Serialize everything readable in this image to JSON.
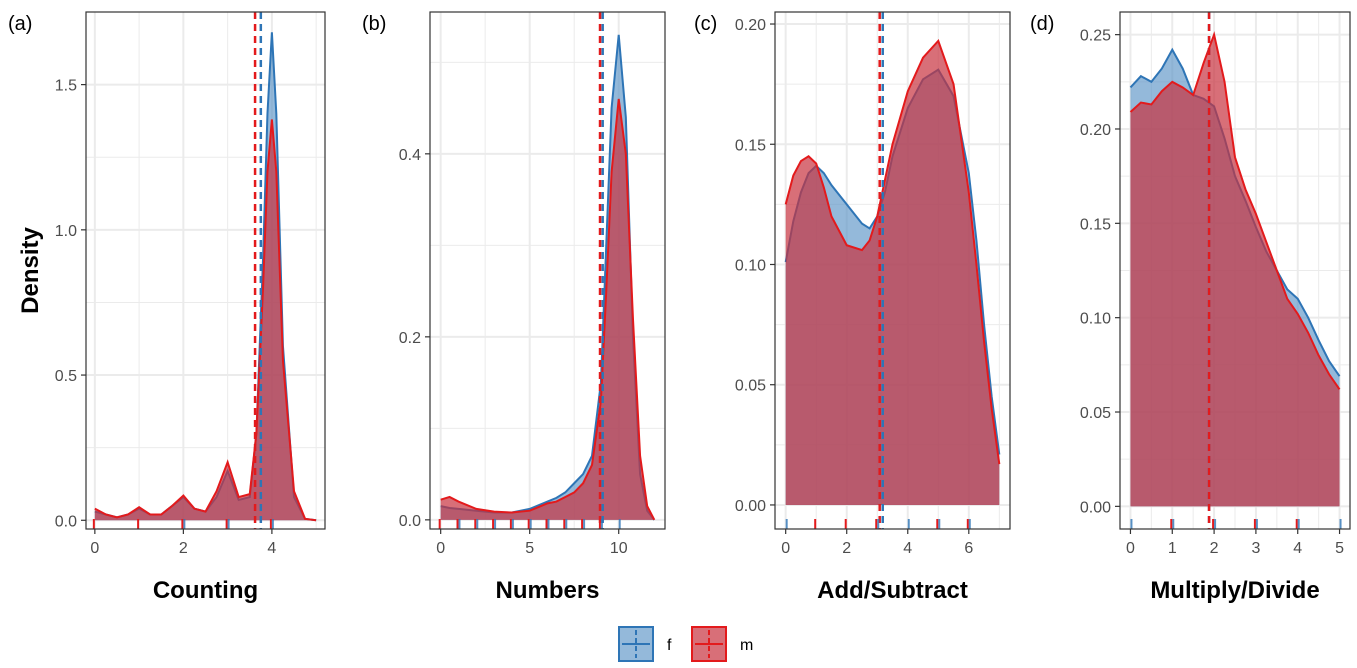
{
  "chart_data": [
    {
      "type": "area",
      "panel": "(a)",
      "xlabel": "Counting",
      "ylabel": "Density",
      "xlim": [
        -0.2,
        5.2
      ],
      "ylim": [
        -0.03,
        1.75
      ],
      "xticks": [
        0,
        2,
        4
      ],
      "yticks": [
        0.0,
        0.5,
        1.0,
        1.5
      ],
      "ytick_labels": [
        "0.0",
        "0.5",
        "1.0",
        "1.5"
      ],
      "xminor": [
        1,
        3,
        5
      ],
      "yminor": [
        0.25,
        0.75,
        1.25
      ],
      "grid": true,
      "mean_lines": {
        "f": 3.75,
        "m": 3.62
      },
      "rug": {
        "f": [
          2,
          3,
          4
        ],
        "m": [
          0,
          1,
          2,
          3,
          4
        ]
      },
      "series": [
        {
          "name": "f",
          "x": [
            0,
            0.25,
            0.5,
            0.75,
            1,
            1.25,
            1.5,
            1.75,
            2,
            2.25,
            2.5,
            2.75,
            3,
            3.25,
            3.5,
            3.65,
            3.8,
            3.9,
            4,
            4.1,
            4.25,
            4.5,
            4.75,
            5
          ],
          "y": [
            0.03,
            0.02,
            0.01,
            0.02,
            0.04,
            0.02,
            0.02,
            0.05,
            0.08,
            0.04,
            0.03,
            0.08,
            0.17,
            0.07,
            0.08,
            0.3,
            0.9,
            1.4,
            1.68,
            1.4,
            0.6,
            0.08,
            0.005,
            0
          ]
        },
        {
          "name": "m",
          "x": [
            0,
            0.25,
            0.5,
            0.75,
            1,
            1.25,
            1.5,
            1.75,
            2,
            2.25,
            2.5,
            2.75,
            3,
            3.25,
            3.5,
            3.65,
            3.8,
            3.9,
            4,
            4.1,
            4.25,
            4.5,
            4.75,
            5
          ],
          "y": [
            0.04,
            0.02,
            0.01,
            0.02,
            0.045,
            0.02,
            0.02,
            0.05,
            0.085,
            0.04,
            0.03,
            0.1,
            0.2,
            0.08,
            0.09,
            0.3,
            0.8,
            1.2,
            1.38,
            1.2,
            0.55,
            0.1,
            0.005,
            0
          ]
        }
      ]
    },
    {
      "type": "area",
      "panel": "(b)",
      "xlabel": "Numbers",
      "ylabel": "",
      "xlim": [
        -0.6,
        12.6
      ],
      "ylim": [
        -0.01,
        0.555
      ],
      "xticks": [
        0,
        5,
        10
      ],
      "yticks": [
        0.0,
        0.2,
        0.4
      ],
      "ytick_labels": [
        "0.0",
        "0.2",
        "0.4"
      ],
      "xminor": [
        2.5,
        7.5
      ],
      "yminor": [
        0.1,
        0.3,
        0.5
      ],
      "grid": true,
      "mean_lines": {
        "f": 9.1,
        "m": 8.95
      },
      "rug": {
        "f": [
          1,
          2,
          3,
          4,
          5,
          6,
          7,
          8,
          9,
          10
        ],
        "m": [
          0,
          1,
          2,
          3,
          4,
          5,
          6,
          7,
          8,
          9
        ]
      },
      "series": [
        {
          "name": "f",
          "x": [
            0,
            0.5,
            1,
            2,
            3,
            4,
            5,
            6,
            6.5,
            7,
            7.5,
            8,
            8.5,
            9,
            9.3,
            9.6,
            10,
            10.4,
            10.8,
            11.2,
            11.6,
            12
          ],
          "y": [
            0.015,
            0.013,
            0.012,
            0.01,
            0.008,
            0.008,
            0.012,
            0.02,
            0.024,
            0.03,
            0.04,
            0.05,
            0.07,
            0.15,
            0.3,
            0.45,
            0.53,
            0.44,
            0.2,
            0.05,
            0.01,
            0
          ]
        },
        {
          "name": "m",
          "x": [
            0,
            0.5,
            1,
            2,
            3,
            4,
            5,
            6,
            6.5,
            7,
            7.5,
            8,
            8.5,
            9,
            9.3,
            9.6,
            10,
            10.4,
            10.8,
            11.2,
            11.6,
            12
          ],
          "y": [
            0.022,
            0.025,
            0.02,
            0.012,
            0.009,
            0.008,
            0.01,
            0.018,
            0.02,
            0.025,
            0.03,
            0.04,
            0.06,
            0.13,
            0.25,
            0.38,
            0.46,
            0.4,
            0.22,
            0.07,
            0.015,
            0
          ]
        }
      ]
    },
    {
      "type": "area",
      "panel": "(c)",
      "xlabel": "Add/Subtract",
      "ylabel": "",
      "xlim": [
        -0.35,
        7.35
      ],
      "ylim": [
        -0.01,
        0.205
      ],
      "xticks": [
        0,
        2,
        4,
        6
      ],
      "yticks": [
        0.0,
        0.05,
        0.1,
        0.15,
        0.2
      ],
      "ytick_labels": [
        "0.00",
        "0.05",
        "0.10",
        "0.15",
        "0.20"
      ],
      "xminor": [
        1,
        3,
        5,
        7
      ],
      "yminor": [
        0.025,
        0.075,
        0.125,
        0.175
      ],
      "grid": true,
      "mean_lines": {
        "f": 3.18,
        "m": 3.08
      },
      "rug": {
        "f": [
          0,
          3,
          4,
          5,
          6
        ],
        "m": [
          1,
          2,
          3,
          5,
          6
        ]
      },
      "series": [
        {
          "name": "f",
          "x": [
            0,
            0.25,
            0.5,
            0.75,
            1,
            1.25,
            1.5,
            2,
            2.5,
            2.75,
            3,
            3.25,
            3.5,
            4,
            4.5,
            5,
            5.5,
            6,
            6.25,
            6.5,
            6.75,
            7
          ],
          "y": [
            0.101,
            0.118,
            0.13,
            0.138,
            0.141,
            0.138,
            0.133,
            0.125,
            0.117,
            0.115,
            0.12,
            0.13,
            0.145,
            0.165,
            0.177,
            0.181,
            0.17,
            0.138,
            0.11,
            0.075,
            0.045,
            0.021
          ]
        },
        {
          "name": "m",
          "x": [
            0,
            0.25,
            0.5,
            0.75,
            1,
            1.25,
            1.5,
            2,
            2.5,
            2.75,
            3,
            3.25,
            3.5,
            4,
            4.5,
            5,
            5.5,
            6,
            6.25,
            6.5,
            6.75,
            7
          ],
          "y": [
            0.125,
            0.137,
            0.143,
            0.145,
            0.142,
            0.132,
            0.12,
            0.108,
            0.106,
            0.11,
            0.12,
            0.135,
            0.15,
            0.172,
            0.186,
            0.193,
            0.175,
            0.13,
            0.1,
            0.068,
            0.04,
            0.017
          ]
        }
      ]
    },
    {
      "type": "area",
      "panel": "(d)",
      "xlabel": "Multiply/Divide",
      "ylabel": "",
      "xlim": [
        -0.25,
        5.25
      ],
      "ylim": [
        -0.012,
        0.262
      ],
      "xticks": [
        0,
        1,
        2,
        3,
        4,
        5
      ],
      "yticks": [
        0.0,
        0.05,
        0.1,
        0.15,
        0.2,
        0.25
      ],
      "ytick_labels": [
        "0.00",
        "0.05",
        "0.10",
        "0.15",
        "0.20",
        "0.25"
      ],
      "xminor": [
        0.5,
        1.5,
        2.5,
        3.5,
        4.5
      ],
      "yminor": [
        0.025,
        0.075,
        0.125,
        0.175,
        0.225
      ],
      "grid": true,
      "mean_lines": {
        "f": 1.88,
        "m": 1.88
      },
      "rug": {
        "f": [
          0,
          1,
          2,
          3,
          4,
          5
        ],
        "m": [
          1,
          2,
          3,
          4
        ]
      },
      "series": [
        {
          "name": "f",
          "x": [
            0,
            0.25,
            0.5,
            0.75,
            1,
            1.25,
            1.5,
            1.75,
            2,
            2.25,
            2.5,
            2.75,
            3,
            3.25,
            3.5,
            3.75,
            4,
            4.25,
            4.5,
            4.75,
            5
          ],
          "y": [
            0.222,
            0.228,
            0.225,
            0.232,
            0.242,
            0.232,
            0.218,
            0.216,
            0.212,
            0.195,
            0.175,
            0.162,
            0.148,
            0.135,
            0.125,
            0.115,
            0.11,
            0.1,
            0.088,
            0.077,
            0.069
          ]
        },
        {
          "name": "m",
          "x": [
            0,
            0.25,
            0.5,
            0.75,
            1,
            1.25,
            1.5,
            1.75,
            2,
            2.25,
            2.5,
            2.75,
            3,
            3.25,
            3.5,
            3.75,
            4,
            4.25,
            4.5,
            4.75,
            5
          ],
          "y": [
            0.209,
            0.214,
            0.213,
            0.22,
            0.225,
            0.222,
            0.218,
            0.235,
            0.25,
            0.225,
            0.185,
            0.168,
            0.155,
            0.14,
            0.125,
            0.11,
            0.102,
            0.092,
            0.08,
            0.07,
            0.062
          ]
        }
      ]
    }
  ],
  "legend": {
    "placement": "bottom",
    "items": [
      {
        "key": "f",
        "label": "f"
      },
      {
        "key": "m",
        "label": "m"
      }
    ]
  },
  "colors": {
    "f_line": "#2e75b6",
    "f_fill": "#5b93c6",
    "m_line": "#e31a1c",
    "m_fill": "#c8323f",
    "grid": "#ebebeb",
    "axis": "#333333"
  }
}
